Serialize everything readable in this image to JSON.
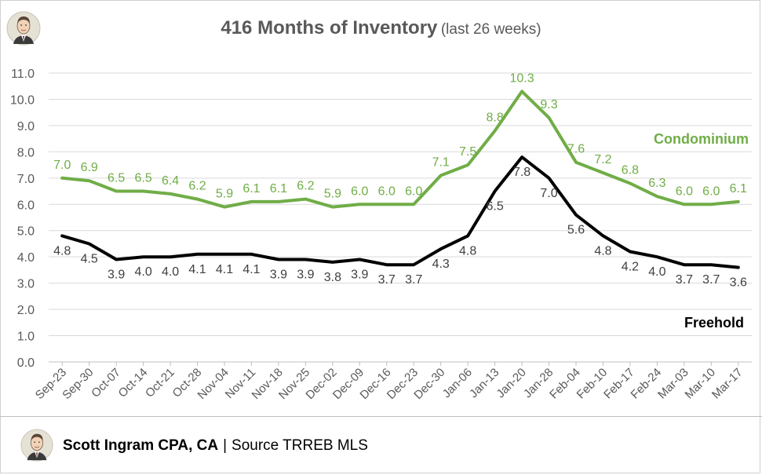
{
  "title": {
    "main": "416 Months of Inventory",
    "sub": "(last 26 weeks)"
  },
  "footer": {
    "author": "Scott Ingram CPA, CA",
    "separator": "|",
    "source": "Source TRREB MLS"
  },
  "colors": {
    "condominium": "#70ad47",
    "freehold": "#000000",
    "grid": "#d9d9d9",
    "text": "#595959"
  },
  "chart_data": {
    "type": "line",
    "title": "416 Months of Inventory (last 26 weeks)",
    "xlabel": "",
    "ylabel": "",
    "ylim": [
      0,
      11
    ],
    "yticks": [
      0,
      1,
      2,
      3,
      4,
      5,
      6,
      7,
      8,
      9,
      10,
      11
    ],
    "ytick_labels": [
      "0.0",
      "1.0",
      "2.0",
      "3.0",
      "4.0",
      "5.0",
      "6.0",
      "7.0",
      "8.0",
      "9.0",
      "10.0",
      "11.0"
    ],
    "grid": true,
    "categories": [
      "Sep-23",
      "Sep-30",
      "Oct-07",
      "Oct-14",
      "Oct-21",
      "Oct-28",
      "Nov-04",
      "Nov-11",
      "Nov-18",
      "Nov-25",
      "Dec-02",
      "Dec-09",
      "Dec-16",
      "Dec-23",
      "Dec-30",
      "Jan-06",
      "Jan-13",
      "Jan-20",
      "Jan-28",
      "Feb-04",
      "Feb-10",
      "Feb-17",
      "Feb-24",
      "Mar-03",
      "Mar-10",
      "Mar-17"
    ],
    "series": [
      {
        "name": "Condominium",
        "values": [
          7.0,
          6.9,
          6.5,
          6.5,
          6.4,
          6.2,
          5.9,
          6.1,
          6.1,
          6.2,
          5.9,
          6.0,
          6.0,
          6.0,
          7.1,
          7.5,
          8.8,
          10.3,
          9.3,
          7.6,
          7.2,
          6.8,
          6.3,
          6.0,
          6.0,
          6.1
        ],
        "labels": [
          "7.0",
          "6.9",
          "6.5",
          "6.5",
          "6.4",
          "6.2",
          "5.9",
          "6.1",
          "6.1",
          "6.2",
          "5.9",
          "6.0",
          "6.0",
          "6.0",
          "7.1",
          "7.5",
          "8.8",
          "10.3",
          "9.3",
          "7.6",
          "7.2",
          "6.8",
          "6.3",
          "6.0",
          "6.0",
          "6.1"
        ]
      },
      {
        "name": "Freehold",
        "values": [
          4.8,
          4.5,
          3.9,
          4.0,
          4.0,
          4.1,
          4.1,
          4.1,
          3.9,
          3.9,
          3.8,
          3.9,
          3.7,
          3.7,
          4.3,
          4.8,
          6.5,
          7.8,
          7.0,
          5.6,
          4.8,
          4.2,
          4.0,
          3.7,
          3.7,
          3.6
        ],
        "labels": [
          "4.8",
          "4.5",
          "3.9",
          "4.0",
          "4.0",
          "4.1",
          "4.1",
          "4.1",
          "3.9",
          "3.9",
          "3.8",
          "3.9",
          "3.7",
          "3.7",
          "4.3",
          "4.8",
          "6.5",
          "7.8",
          "7.0",
          "5.6",
          "4.8",
          "4.2",
          "4.0",
          "3.7",
          "3.7",
          "3.6"
        ]
      }
    ],
    "series_labels": {
      "condominium": "Condominium",
      "freehold": "Freehold"
    }
  }
}
